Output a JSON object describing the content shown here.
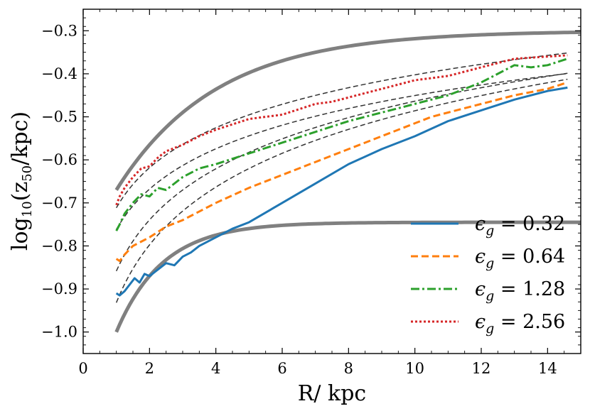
{
  "chart_data": {
    "type": "line",
    "xlabel": "R/ kpc",
    "ylabel": {
      "prefix": "log",
      "sub": "10",
      "open": "(z",
      "sub2": "50",
      "close": "/kpc)"
    },
    "xlim": [
      0,
      15
    ],
    "ylim": [
      -1.05,
      -0.25
    ],
    "xticks": [
      0,
      2,
      4,
      6,
      8,
      10,
      12,
      14
    ],
    "xtick_labels": [
      "0",
      "2",
      "4",
      "6",
      "8",
      "10",
      "12",
      "14"
    ],
    "yticks": [
      -1.0,
      -0.9,
      -0.8,
      -0.7,
      -0.6,
      -0.5,
      -0.4,
      -0.3
    ],
    "ytick_labels": [
      "−1.0",
      "−0.9",
      "−0.8",
      "−0.7",
      "−0.6",
      "−0.5",
      "−0.4",
      "−0.3"
    ],
    "legend_position": "lower-right",
    "colors": {
      "blue": "#1f77b4",
      "orange": "#ff7f0e",
      "green": "#2ca02c",
      "red": "#d62728",
      "gray": "#808080",
      "fit": "#333333"
    },
    "series": [
      {
        "name": "ϵg = 0.32",
        "legend_label": "ϵ",
        "legend_sub": "g",
        "legend_value": " = 0.32",
        "style": "solid",
        "color": "#1f77b4",
        "x": [
          1.0,
          1.1,
          1.25,
          1.4,
          1.55,
          1.7,
          1.85,
          2.0,
          2.25,
          2.5,
          2.75,
          3.0,
          3.25,
          3.5,
          4.0,
          4.5,
          5.0,
          6.0,
          7.0,
          8.0,
          9.0,
          10.0,
          11.0,
          12.0,
          13.0,
          14.0,
          14.6
        ],
        "y": [
          -0.91,
          -0.915,
          -0.905,
          -0.89,
          -0.875,
          -0.885,
          -0.865,
          -0.87,
          -0.855,
          -0.84,
          -0.845,
          -0.825,
          -0.815,
          -0.8,
          -0.78,
          -0.76,
          -0.745,
          -0.7,
          -0.655,
          -0.61,
          -0.575,
          -0.545,
          -0.51,
          -0.485,
          -0.46,
          -0.44,
          -0.432
        ]
      },
      {
        "name": "ϵg = 0.64",
        "legend_label": "ϵ",
        "legend_sub": "g",
        "legend_value": " = 0.64",
        "style": "dashed",
        "color": "#ff7f0e",
        "x": [
          1.0,
          1.1,
          1.25,
          1.5,
          1.75,
          2.0,
          2.5,
          3.0,
          3.5,
          4.0,
          5.0,
          6.0,
          7.0,
          8.0,
          9.0,
          10.0,
          10.5,
          11.0,
          12.0,
          13.0,
          14.0,
          14.6
        ],
        "y": [
          -0.83,
          -0.835,
          -0.82,
          -0.8,
          -0.79,
          -0.78,
          -0.755,
          -0.74,
          -0.72,
          -0.7,
          -0.665,
          -0.635,
          -0.605,
          -0.575,
          -0.545,
          -0.515,
          -0.5,
          -0.49,
          -0.47,
          -0.45,
          -0.435,
          -0.42
        ]
      },
      {
        "name": "ϵg = 1.28",
        "legend_label": "ϵ",
        "legend_sub": "g",
        "legend_value": " = 1.28",
        "style": "dashdot",
        "color": "#2ca02c",
        "x": [
          1.0,
          1.1,
          1.25,
          1.5,
          1.75,
          2.0,
          2.25,
          2.5,
          3.0,
          3.5,
          4.0,
          5.0,
          6.0,
          7.0,
          8.0,
          9.0,
          10.0,
          11.0,
          12.0,
          13.0,
          13.5,
          14.0,
          14.6
        ],
        "y": [
          -0.765,
          -0.75,
          -0.725,
          -0.7,
          -0.68,
          -0.685,
          -0.665,
          -0.67,
          -0.64,
          -0.62,
          -0.61,
          -0.585,
          -0.56,
          -0.535,
          -0.51,
          -0.49,
          -0.47,
          -0.45,
          -0.42,
          -0.38,
          -0.385,
          -0.38,
          -0.365
        ]
      },
      {
        "name": "ϵg = 2.56",
        "legend_label": "ϵ",
        "legend_sub": "g",
        "legend_value": " = 2.56",
        "style": "dotted",
        "color": "#d62728",
        "x": [
          1.0,
          1.1,
          1.25,
          1.5,
          1.75,
          2.0,
          2.25,
          2.5,
          3.0,
          3.5,
          4.0,
          5.0,
          6.0,
          7.0,
          7.5,
          8.0,
          9.0,
          10.0,
          11.0,
          12.0,
          13.0,
          14.0,
          14.6
        ],
        "y": [
          -0.705,
          -0.685,
          -0.665,
          -0.64,
          -0.62,
          -0.615,
          -0.595,
          -0.58,
          -0.565,
          -0.545,
          -0.53,
          -0.505,
          -0.495,
          -0.47,
          -0.465,
          -0.455,
          -0.435,
          -0.415,
          -0.405,
          -0.385,
          -0.365,
          -0.36,
          -0.357
        ]
      }
    ],
    "fits": [
      {
        "name": "fit-0.32",
        "a": -0.9317,
        "b": 0.1936,
        "x_range": [
          1.0,
          14.6
        ]
      },
      {
        "name": "fit-0.64",
        "a": -0.8583,
        "b": 0.1714,
        "x_range": [
          1.0,
          14.6
        ]
      },
      {
        "name": "fit-1.28",
        "a": -0.7616,
        "b": 0.1351,
        "x_range": [
          1.0,
          14.6
        ]
      },
      {
        "name": "fit-2.56",
        "a": -0.7114,
        "b": 0.1342,
        "x_range": [
          1.0,
          14.6
        ]
      }
    ],
    "bounds": [
      {
        "name": "upper-bound",
        "a": -0.67,
        "b": 0.37,
        "c": 3.0,
        "x_range": [
          1.0,
          15.0
        ]
      },
      {
        "name": "lower-bound",
        "a": -1.0,
        "b": 0.255,
        "c": 1.4,
        "x_range": [
          1.0,
          15.0
        ]
      }
    ]
  }
}
